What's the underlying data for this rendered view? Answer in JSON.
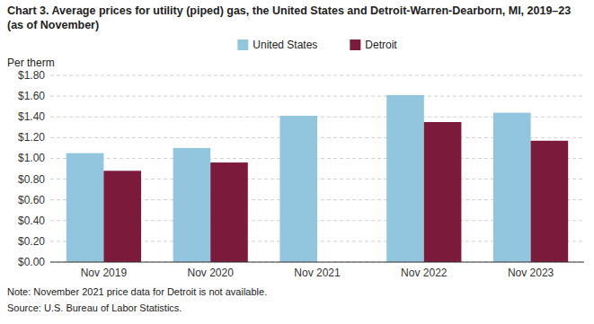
{
  "chart_data": {
    "type": "bar",
    "title": "Chart 3. Average prices for utility (piped) gas, the United States and Detroit-Warren-Dearborn, MI, 2019–23 (as of November)",
    "ylabel": "Per therm",
    "categories": [
      "Nov 2019",
      "Nov 2020",
      "Nov 2021",
      "Nov 2022",
      "Nov 2023"
    ],
    "series": [
      {
        "name": "United States",
        "color": "#92C5DE",
        "values": [
          1.05,
          1.1,
          1.41,
          1.61,
          1.44
        ]
      },
      {
        "name": "Detroit",
        "color": "#7B1A3A",
        "values": [
          0.88,
          0.96,
          null,
          1.35,
          1.17
        ]
      }
    ],
    "ylim": [
      0.0,
      1.8
    ],
    "yticks": [
      {
        "value": 0.0,
        "label": "$0.00"
      },
      {
        "value": 0.2,
        "label": "$0.20"
      },
      {
        "value": 0.4,
        "label": "$0.40"
      },
      {
        "value": 0.6,
        "label": "$0.60"
      },
      {
        "value": 0.8,
        "label": "$0.80"
      },
      {
        "value": 1.0,
        "label": "$1.00"
      },
      {
        "value": 1.2,
        "label": "$1.20"
      },
      {
        "value": 1.4,
        "label": "$1.40"
      },
      {
        "value": 1.6,
        "label": "$1.60"
      },
      {
        "value": 1.8,
        "label": "$1.80"
      }
    ],
    "grid": true,
    "legend": "top",
    "note": "Note: November 2021  price data for Detroit is not available.",
    "source": "Source: U.S. Bureau of Labor Statistics."
  }
}
